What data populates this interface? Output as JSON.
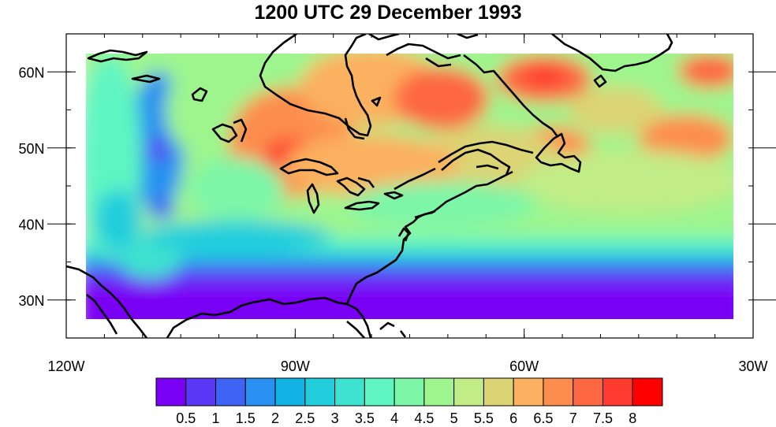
{
  "title": "1200 UTC 29 December 1993",
  "map": {
    "lon_range": [
      -120,
      -30
    ],
    "lat_range": [
      25,
      65
    ],
    "data_lon_range": [
      -117.5,
      -32.5
    ],
    "data_lat_range": [
      27.5,
      62.5
    ],
    "lon_ticks": [
      {
        "value": -120,
        "label": "120W"
      },
      {
        "value": -90,
        "label": "90W"
      },
      {
        "value": -60,
        "label": "60W"
      },
      {
        "value": -30,
        "label": "30W"
      }
    ],
    "lat_ticks": [
      {
        "value": 30,
        "label": "30N"
      },
      {
        "value": 40,
        "label": "40N"
      },
      {
        "value": 50,
        "label": "50N"
      },
      {
        "value": 60,
        "label": "60N"
      }
    ]
  },
  "colorbar": {
    "levels": [
      "0.5",
      "1",
      "1.5",
      "2",
      "2.5",
      "3",
      "3.5",
      "4",
      "4.5",
      "5",
      "5.5",
      "6",
      "6.5",
      "7",
      "7.5",
      "8"
    ],
    "colors": [
      "#7a00f5",
      "#5b37f6",
      "#3f63f4",
      "#2890f0",
      "#13b2e4",
      "#22cedc",
      "#3de2d0",
      "#5ef5c2",
      "#7df6a7",
      "#9ef58e",
      "#c2ec87",
      "#dcd474",
      "#fbb15f",
      "#fd8d4e",
      "#fd6843",
      "#ff3a2e",
      "#ff0000"
    ]
  }
}
